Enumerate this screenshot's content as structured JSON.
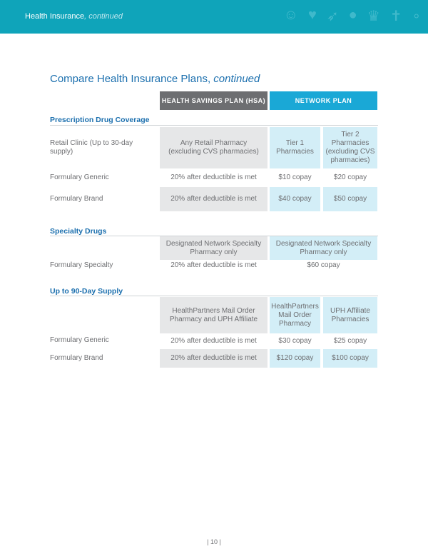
{
  "header": {
    "title": "Health Insurance",
    "title_suffix": ", continued",
    "icons": [
      "people-icon",
      "head-heart-icon",
      "rocket-icon",
      "piggy-bank-icon",
      "trophy-icon",
      "signpost-icon",
      "hand-coins-icon"
    ]
  },
  "heading": {
    "title": "Compare Health Insurance Plans,",
    "suffix": "continued"
  },
  "columns": {
    "hsa": "HEALTH SAVINGS PLAN (HSA)",
    "network": "NETWORK PLAN"
  },
  "prescription": {
    "title": "Prescription Drug Coverage",
    "retail": {
      "label": "Retail Clinic (Up to 30-day supply)",
      "hsa": "Any Retail Pharmacy (excluding CVS pharmacies)",
      "tier1": "Tier 1 Pharmacies",
      "tier2": "Tier 2 Pharmacies (excluding CVS pharmacies)"
    },
    "generic": {
      "label": "Formulary Generic",
      "hsa": "20% after deductible is met",
      "tier1": "$10 copay",
      "tier2": "$20 copay"
    },
    "brand": {
      "label": "Formulary Brand",
      "hsa": "20% after deductible is met",
      "tier1": "$40 copay",
      "tier2": "$50 copay"
    }
  },
  "specialty": {
    "title": "Specialty Drugs",
    "pharmacy": {
      "hsa": "Designated Network Specialty Pharmacy only",
      "network": "Designated Network Specialty Pharmacy only"
    },
    "formulary": {
      "label": "Formulary Specialty",
      "hsa": "20% after deductible is met",
      "network": "$60 copay"
    }
  },
  "supply90": {
    "title": "Up to 90-Day Supply",
    "pharmacy": {
      "hsa": "HealthPartners Mail Order Pharmacy and UPH Affiliate",
      "tier1": "HealthPartners Mail Order Pharmacy",
      "tier2": "UPH Affiliate Pharmacies"
    },
    "generic": {
      "label": "Formulary Generic",
      "hsa": "20% after deductible is met",
      "tier1": "$30 copay",
      "tier2": "$25 copay"
    },
    "brand": {
      "label": "Formulary Brand",
      "hsa": "20% after deductible is met",
      "tier1": "$120 copay",
      "tier2": "$100 copay"
    }
  },
  "footer": {
    "page": "| 10 |"
  }
}
